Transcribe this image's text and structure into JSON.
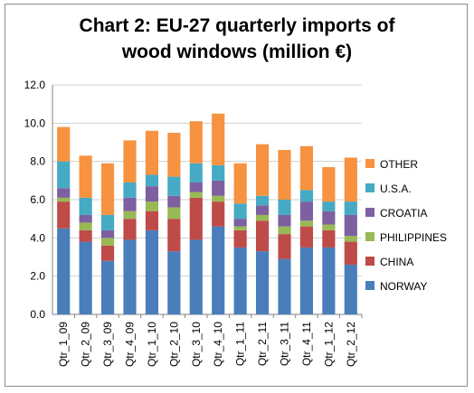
{
  "chart_data": {
    "type": "bar",
    "stacked": true,
    "title_line1": "Chart 2: EU-27 quarterly imports of",
    "title_line2": "wood windows (million €)",
    "categories": [
      "Qtr_1_09",
      "Qtr_2_09",
      "Qtr_3_09",
      "Qtr_4_09",
      "Qtr_1_10",
      "Qtr_2_10",
      "Qtr_3_10",
      "Qtr_4_10",
      "Qtr_1_11",
      "Qtr_2_11",
      "Qtr_3_11",
      "Qtr_4_11",
      "Qtr_1_12",
      "Qtr_2_12"
    ],
    "ylim": [
      0,
      12
    ],
    "yticks": [
      "0.0",
      "2.0",
      "4.0",
      "6.0",
      "8.0",
      "10.0",
      "12.0"
    ],
    "grid": true,
    "legend_position": "right",
    "series": [
      {
        "name": "NORWAY",
        "color": "#4a7ebb",
        "values": [
          4.5,
          3.8,
          2.8,
          3.9,
          4.4,
          3.3,
          3.9,
          4.6,
          3.5,
          3.3,
          2.9,
          3.5,
          3.5,
          2.6
        ]
      },
      {
        "name": "CHINA",
        "color": "#be4b48",
        "values": [
          1.4,
          0.6,
          0.8,
          1.1,
          1.0,
          1.7,
          2.2,
          1.3,
          0.9,
          1.6,
          1.3,
          1.1,
          0.9,
          1.2
        ]
      },
      {
        "name": "PHILIPPINES",
        "color": "#98b954",
        "values": [
          0.2,
          0.4,
          0.4,
          0.4,
          0.5,
          0.6,
          0.3,
          0.3,
          0.2,
          0.3,
          0.4,
          0.3,
          0.3,
          0.3
        ]
      },
      {
        "name": "CROATIA",
        "color": "#7d60a0",
        "values": [
          0.5,
          0.4,
          0.4,
          0.7,
          0.8,
          0.6,
          0.5,
          0.8,
          0.4,
          0.5,
          0.6,
          1.0,
          0.7,
          1.1
        ]
      },
      {
        "name": "U.S.A.",
        "color": "#46aac5",
        "values": [
          1.4,
          0.9,
          0.8,
          0.8,
          0.6,
          1.0,
          1.0,
          0.8,
          0.8,
          0.5,
          0.8,
          0.6,
          0.5,
          0.7
        ]
      },
      {
        "name": "OTHER",
        "color": "#f69240",
        "values": [
          1.8,
          2.2,
          2.7,
          2.2,
          2.3,
          2.3,
          2.2,
          2.7,
          2.1,
          2.7,
          2.6,
          2.3,
          1.8,
          2.3
        ]
      }
    ]
  }
}
